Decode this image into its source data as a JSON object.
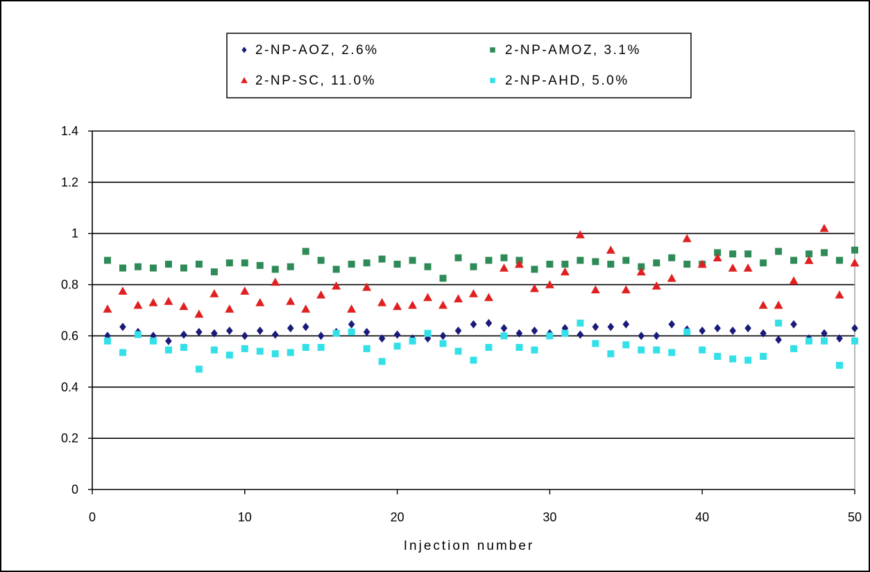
{
  "chart_data": {
    "type": "scatter",
    "title": "",
    "xlabel": "Injection number",
    "ylabel": "",
    "xlim": [
      0,
      50
    ],
    "ylim": [
      0,
      1.4
    ],
    "xticks": [
      0,
      10,
      20,
      30,
      40,
      50
    ],
    "yticks": [
      0,
      0.2,
      0.4,
      0.6,
      0.8,
      1,
      1.2,
      1.4
    ],
    "grid": "horizontal",
    "legend": "top-center",
    "series": [
      {
        "name": "2-NP-AOZ, 2.6%",
        "marker": "diamond",
        "color": "#1a1a7a",
        "x": [
          1,
          2,
          3,
          4,
          5,
          6,
          7,
          8,
          9,
          10,
          11,
          12,
          13,
          14,
          15,
          16,
          17,
          18,
          19,
          20,
          21,
          22,
          23,
          24,
          25,
          26,
          27,
          28,
          29,
          30,
          31,
          32,
          33,
          34,
          35,
          36,
          37,
          38,
          39,
          40,
          41,
          42,
          43,
          44,
          45,
          46,
          47,
          48,
          49,
          50
        ],
        "y": [
          0.6,
          0.635,
          0.615,
          0.6,
          0.58,
          0.605,
          0.615,
          0.61,
          0.62,
          0.6,
          0.62,
          0.605,
          0.63,
          0.635,
          0.6,
          0.615,
          0.645,
          0.615,
          0.59,
          0.605,
          0.59,
          0.59,
          0.6,
          0.62,
          0.645,
          0.65,
          0.63,
          0.61,
          0.62,
          0.61,
          0.63,
          0.605,
          0.635,
          0.635,
          0.645,
          0.6,
          0.6,
          0.645,
          0.625,
          0.62,
          0.63,
          0.62,
          0.63,
          0.61,
          0.585,
          0.645,
          0.59,
          0.61,
          0.59,
          0.63
        ]
      },
      {
        "name": "2-NP-AMOZ, 3.1%",
        "marker": "square",
        "color": "#2e8b57",
        "x": [
          1,
          2,
          3,
          4,
          5,
          6,
          7,
          8,
          9,
          10,
          11,
          12,
          13,
          14,
          15,
          16,
          17,
          18,
          19,
          20,
          21,
          22,
          23,
          24,
          25,
          26,
          27,
          28,
          29,
          30,
          31,
          32,
          33,
          34,
          35,
          36,
          37,
          38,
          39,
          40,
          41,
          42,
          43,
          44,
          45,
          46,
          47,
          48,
          49,
          50
        ],
        "y": [
          0.895,
          0.865,
          0.87,
          0.865,
          0.88,
          0.865,
          0.88,
          0.85,
          0.885,
          0.885,
          0.875,
          0.86,
          0.87,
          0.93,
          0.895,
          0.86,
          0.88,
          0.885,
          0.9,
          0.88,
          0.895,
          0.87,
          0.825,
          0.905,
          0.87,
          0.895,
          0.905,
          0.895,
          0.86,
          0.88,
          0.88,
          0.895,
          0.89,
          0.88,
          0.895,
          0.87,
          0.885,
          0.905,
          0.88,
          0.88,
          0.925,
          0.92,
          0.92,
          0.885,
          0.93,
          0.895,
          0.92,
          0.925,
          0.895,
          0.935
        ]
      },
      {
        "name": "2-NP-SC, 11.0%",
        "marker": "triangle",
        "color": "#e02020",
        "x": [
          1,
          2,
          3,
          4,
          5,
          6,
          7,
          8,
          9,
          10,
          11,
          12,
          13,
          14,
          15,
          16,
          17,
          18,
          19,
          20,
          21,
          22,
          23,
          24,
          25,
          26,
          27,
          28,
          29,
          30,
          31,
          32,
          33,
          34,
          35,
          36,
          37,
          38,
          39,
          40,
          41,
          42,
          43,
          44,
          45,
          46,
          47,
          48,
          49,
          50
        ],
        "y": [
          0.705,
          0.775,
          0.72,
          0.73,
          0.735,
          0.715,
          0.685,
          0.765,
          0.705,
          0.775,
          0.73,
          0.81,
          0.735,
          0.705,
          0.76,
          0.795,
          0.705,
          0.79,
          0.73,
          0.715,
          0.72,
          0.75,
          0.72,
          0.745,
          0.765,
          0.75,
          0.865,
          0.88,
          0.785,
          0.8,
          0.85,
          0.995,
          0.78,
          0.935,
          0.78,
          0.85,
          0.795,
          0.825,
          0.98,
          0.88,
          0.905,
          0.865,
          0.865,
          0.72,
          0.72,
          0.815,
          0.895,
          1.02,
          0.76,
          0.885
        ]
      },
      {
        "name": "2-NP-AHD, 5.0%",
        "marker": "square",
        "color": "#33e0e8",
        "x": [
          1,
          2,
          3,
          4,
          5,
          6,
          7,
          8,
          9,
          10,
          11,
          12,
          13,
          14,
          15,
          16,
          17,
          18,
          19,
          20,
          21,
          22,
          23,
          24,
          25,
          26,
          27,
          28,
          29,
          30,
          31,
          32,
          33,
          34,
          35,
          36,
          37,
          38,
          39,
          40,
          41,
          42,
          43,
          44,
          45,
          46,
          47,
          48,
          49,
          50
        ],
        "y": [
          0.58,
          0.535,
          0.605,
          0.58,
          0.545,
          0.555,
          0.47,
          0.545,
          0.525,
          0.55,
          0.54,
          0.53,
          0.535,
          0.555,
          0.555,
          0.61,
          0.615,
          0.55,
          0.5,
          0.56,
          0.58,
          0.61,
          0.57,
          0.54,
          0.505,
          0.555,
          0.6,
          0.555,
          0.545,
          0.6,
          0.61,
          0.65,
          0.57,
          0.53,
          0.565,
          0.545,
          0.545,
          0.535,
          0.615,
          0.545,
          0.52,
          0.51,
          0.505,
          0.52,
          0.65,
          0.55,
          0.58,
          0.58,
          0.485,
          0.58
        ]
      }
    ]
  }
}
